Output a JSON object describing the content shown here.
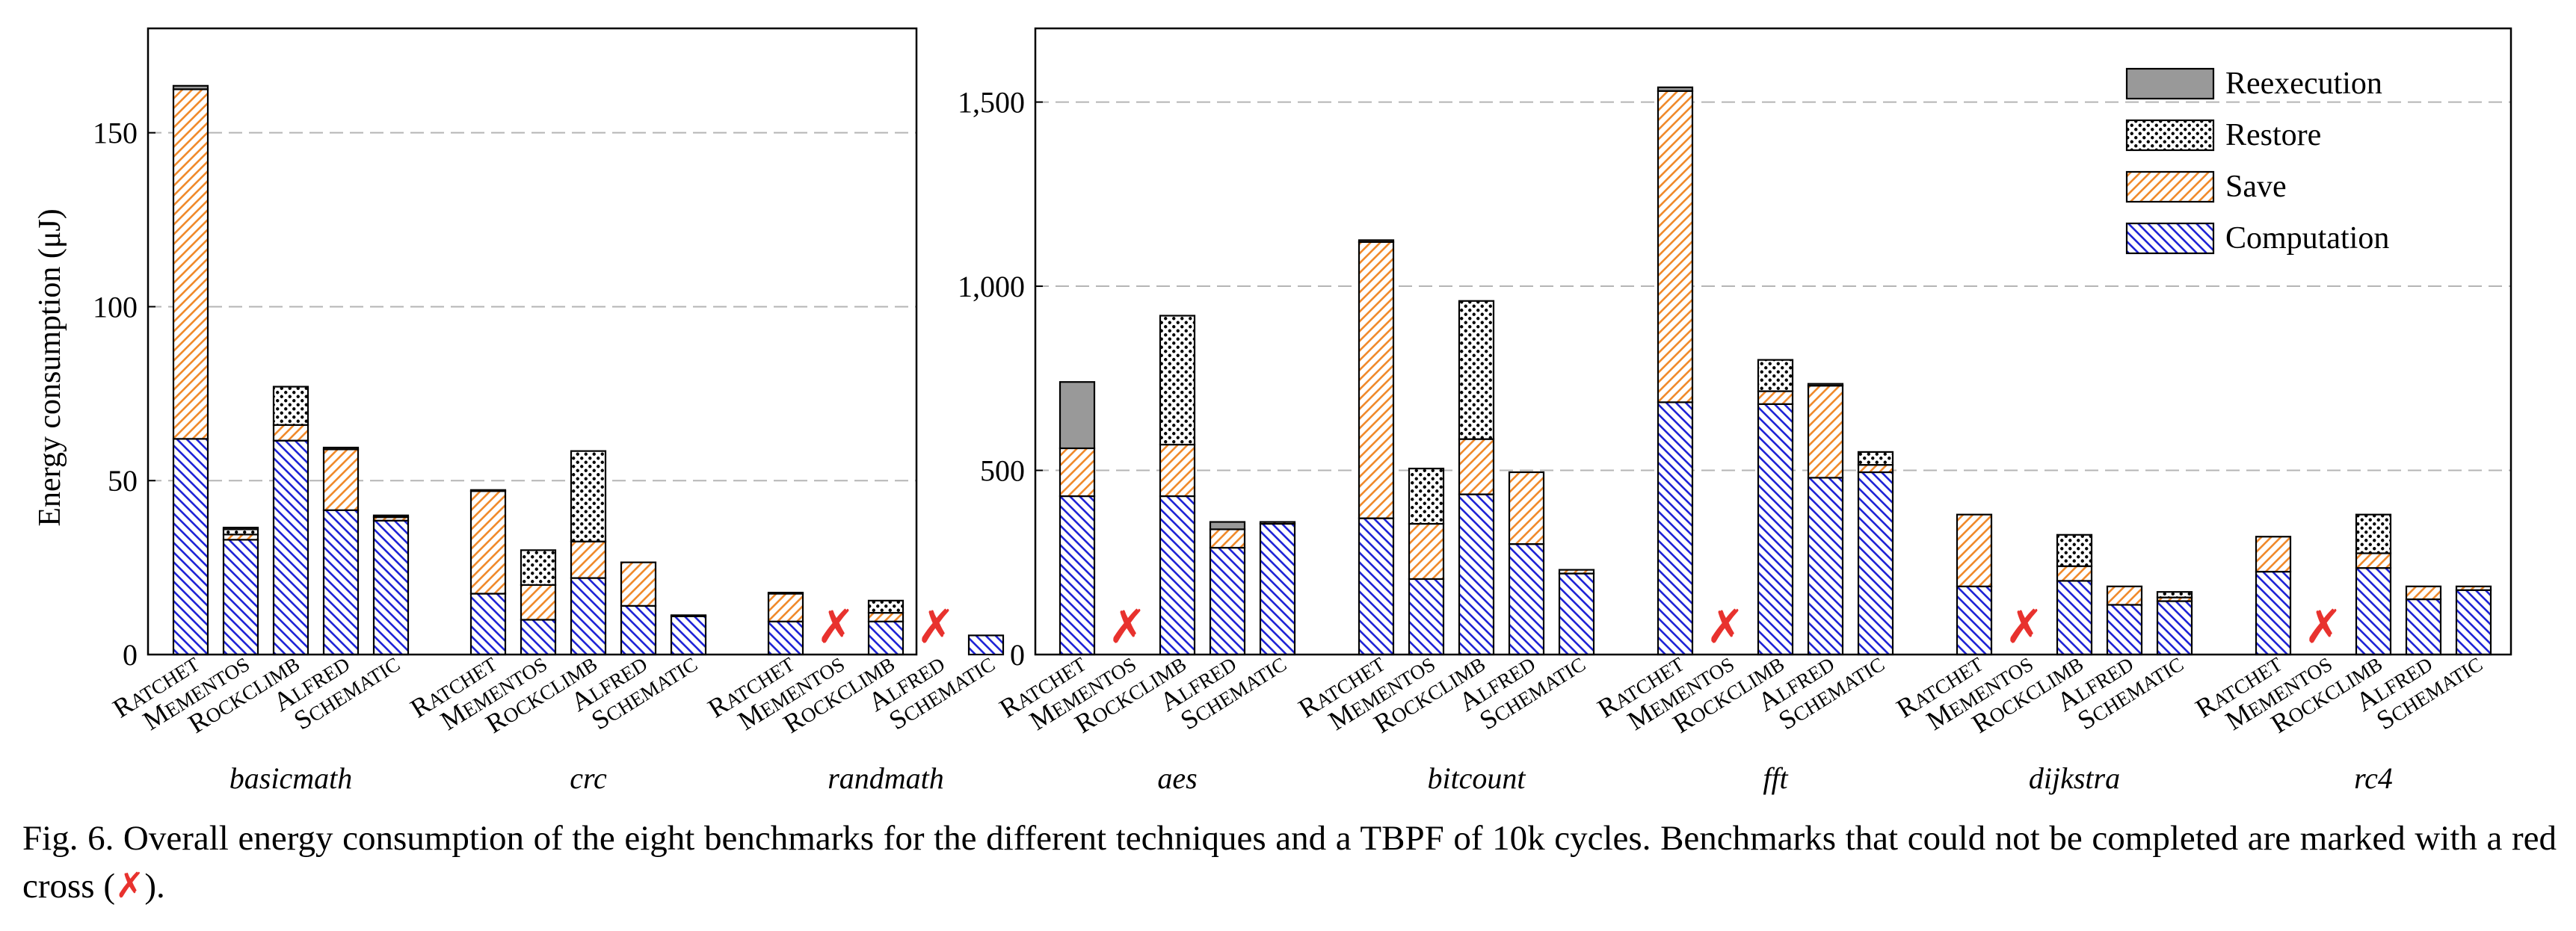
{
  "chart_data": {
    "type": "bar",
    "stacked": true,
    "ylabel": "Energy consumption (μJ)",
    "grid": "horizontal dashed",
    "legend_placement": "top-right (right panel)",
    "legend": [
      {
        "key": "reexecution",
        "label": "Reexecution",
        "pattern": "solid-gray"
      },
      {
        "key": "restore",
        "label": "Restore",
        "pattern": "dots"
      },
      {
        "key": "save",
        "label": "Save",
        "pattern": "orange-hatch"
      },
      {
        "key": "computation",
        "label": "Computation",
        "pattern": "blue-hatch"
      }
    ],
    "colors": {
      "reexecution": "#999999",
      "save_hatch": "#f08a2c",
      "computation_hatch": "#1f24d6",
      "cross": "#e8322e"
    },
    "techniques": [
      "Ratchet",
      "Mementos",
      "Rockclimb",
      "Alfred",
      "Schematic"
    ],
    "technique_labels": [
      {
        "first": "R",
        "rest": "ATCHET"
      },
      {
        "first": "M",
        "rest": "EMENTOS"
      },
      {
        "first": "R",
        "rest": "OCKCLIMB"
      },
      {
        "first": "A",
        "rest": "LFRED"
      },
      {
        "first": "S",
        "rest": "CHEMATIC"
      }
    ],
    "stack_order": [
      "computation",
      "save",
      "restore",
      "reexecution"
    ],
    "panels": [
      {
        "ylim": [
          0,
          180
        ],
        "yticks": [
          0,
          50,
          100,
          150
        ],
        "ytick_labels": [
          "0",
          "50",
          "100",
          "150"
        ],
        "groups": [
          {
            "name": "basicmath",
            "bars": [
              {
                "computation": 62,
                "save": 100.5,
                "restore": 0,
                "reexecution": 1
              },
              {
                "computation": 33,
                "save": 1.5,
                "restore": 1.5,
                "reexecution": 0.5
              },
              {
                "computation": 61.5,
                "save": 4.5,
                "restore": 11,
                "reexecution": 0
              },
              {
                "computation": 41.5,
                "save": 17.5,
                "restore": 0,
                "reexecution": 0.5
              },
              {
                "computation": 38.5,
                "save": 1,
                "restore": 0,
                "reexecution": 0.5
              }
            ]
          },
          {
            "name": "crc",
            "bars": [
              {
                "computation": 17.5,
                "save": 29.5,
                "restore": 0,
                "reexecution": 0.3
              },
              {
                "computation": 10,
                "save": 10,
                "restore": 10,
                "reexecution": 0
              },
              {
                "computation": 22,
                "save": 10.5,
                "restore": 26,
                "reexecution": 0
              },
              {
                "computation": 14,
                "save": 12.5,
                "restore": 0,
                "reexecution": 0
              },
              {
                "computation": 11,
                "save": 0.3,
                "restore": 0,
                "reexecution": 0
              }
            ]
          },
          {
            "name": "randmath",
            "bars": [
              {
                "computation": 9.5,
                "save": 8,
                "restore": 0,
                "reexecution": 0.3
              },
              null,
              {
                "computation": 9.5,
                "save": 2.5,
                "restore": 3.5,
                "reexecution": 0
              },
              null,
              {
                "computation": 5.5,
                "save": 0,
                "restore": 0,
                "reexecution": 0
              }
            ]
          }
        ]
      },
      {
        "ylim": [
          0,
          1700
        ],
        "yticks": [
          0,
          500,
          1000,
          1500
        ],
        "ytick_labels": [
          "0",
          "500",
          "1,000",
          "1,500"
        ],
        "groups": [
          {
            "name": "aes",
            "bars": [
              {
                "computation": 430,
                "save": 130,
                "restore": 0,
                "reexecution": 180
              },
              null,
              {
                "computation": 430,
                "save": 140,
                "restore": 350,
                "reexecution": 0
              },
              {
                "computation": 290,
                "save": 50,
                "restore": 0,
                "reexecution": 20
              },
              {
                "computation": 355,
                "save": 5,
                "restore": 0,
                "reexecution": 0
              }
            ]
          },
          {
            "name": "bitcount",
            "bars": [
              {
                "computation": 370,
                "save": 750,
                "restore": 0,
                "reexecution": 5
              },
              {
                "computation": 205,
                "save": 150,
                "restore": 150,
                "reexecution": 0
              },
              {
                "computation": 435,
                "save": 150,
                "restore": 375,
                "reexecution": 0
              },
              {
                "computation": 300,
                "save": 195,
                "restore": 0,
                "reexecution": 0
              },
              {
                "computation": 220,
                "save": 10,
                "restore": 0,
                "reexecution": 0
              }
            ]
          },
          {
            "name": "fft",
            "bars": [
              {
                "computation": 685,
                "save": 845,
                "restore": 0,
                "reexecution": 10
              },
              null,
              {
                "computation": 680,
                "save": 35,
                "restore": 85,
                "reexecution": 0
              },
              {
                "computation": 480,
                "save": 250,
                "restore": 0,
                "reexecution": 5
              },
              {
                "computation": 495,
                "save": 20,
                "restore": 35,
                "reexecution": 0
              }
            ]
          },
          {
            "name": "dijkstra",
            "bars": [
              {
                "computation": 185,
                "save": 195,
                "restore": 0,
                "reexecution": 0
              },
              null,
              {
                "computation": 200,
                "save": 40,
                "restore": 85,
                "reexecution": 0
              },
              {
                "computation": 135,
                "save": 50,
                "restore": 0,
                "reexecution": 0
              },
              {
                "computation": 145,
                "save": 10,
                "restore": 15,
                "reexecution": 0
              }
            ]
          },
          {
            "name": "rc4",
            "bars": [
              {
                "computation": 225,
                "save": 95,
                "restore": 0,
                "reexecution": 0
              },
              null,
              {
                "computation": 235,
                "save": 40,
                "restore": 105,
                "reexecution": 0
              },
              {
                "computation": 150,
                "save": 35,
                "restore": 0,
                "reexecution": 0
              },
              {
                "computation": 175,
                "save": 10,
                "restore": 0,
                "reexecution": 0
              }
            ]
          }
        ]
      }
    ]
  },
  "caption": {
    "lead": "Fig. 6.  Overall energy consumption of the eight benchmarks for the different techniques and a TBPF of 10k cycles. Benchmarks that could not be completed are marked with a red cross (",
    "cross": "✗",
    "tail": ")."
  }
}
